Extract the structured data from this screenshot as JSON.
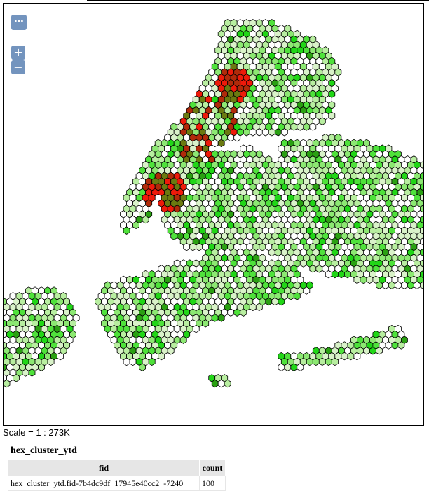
{
  "map": {
    "menu_label": "⋯",
    "zoom_in_label": "+",
    "zoom_out_label": "−",
    "scale_text": "Scale = 1 : 273K",
    "hex_colors": [
      "#ffffff",
      "#d9f2c9",
      "#b8eea0",
      "#8ce872",
      "#4fe23b",
      "#21d617",
      "#2aa012",
      "#6b7a10",
      "#b02a0a",
      "#ee1a0a"
    ],
    "hex_stroke": "#000000"
  },
  "layer": {
    "title": "hex_cluster_ytd",
    "columns": [
      "fid",
      "count"
    ],
    "rows": [
      {
        "fid": "hex_cluster_ytd.fid-7b4dc9df_17945e40cc2_-7240",
        "count": "100"
      }
    ]
  }
}
